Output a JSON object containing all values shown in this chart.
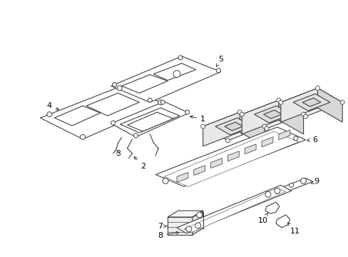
{
  "bg_color": "#ffffff",
  "line_color": "#404040",
  "text_color": "#000000",
  "fig_width": 4.89,
  "fig_height": 3.6,
  "dpi": 100
}
